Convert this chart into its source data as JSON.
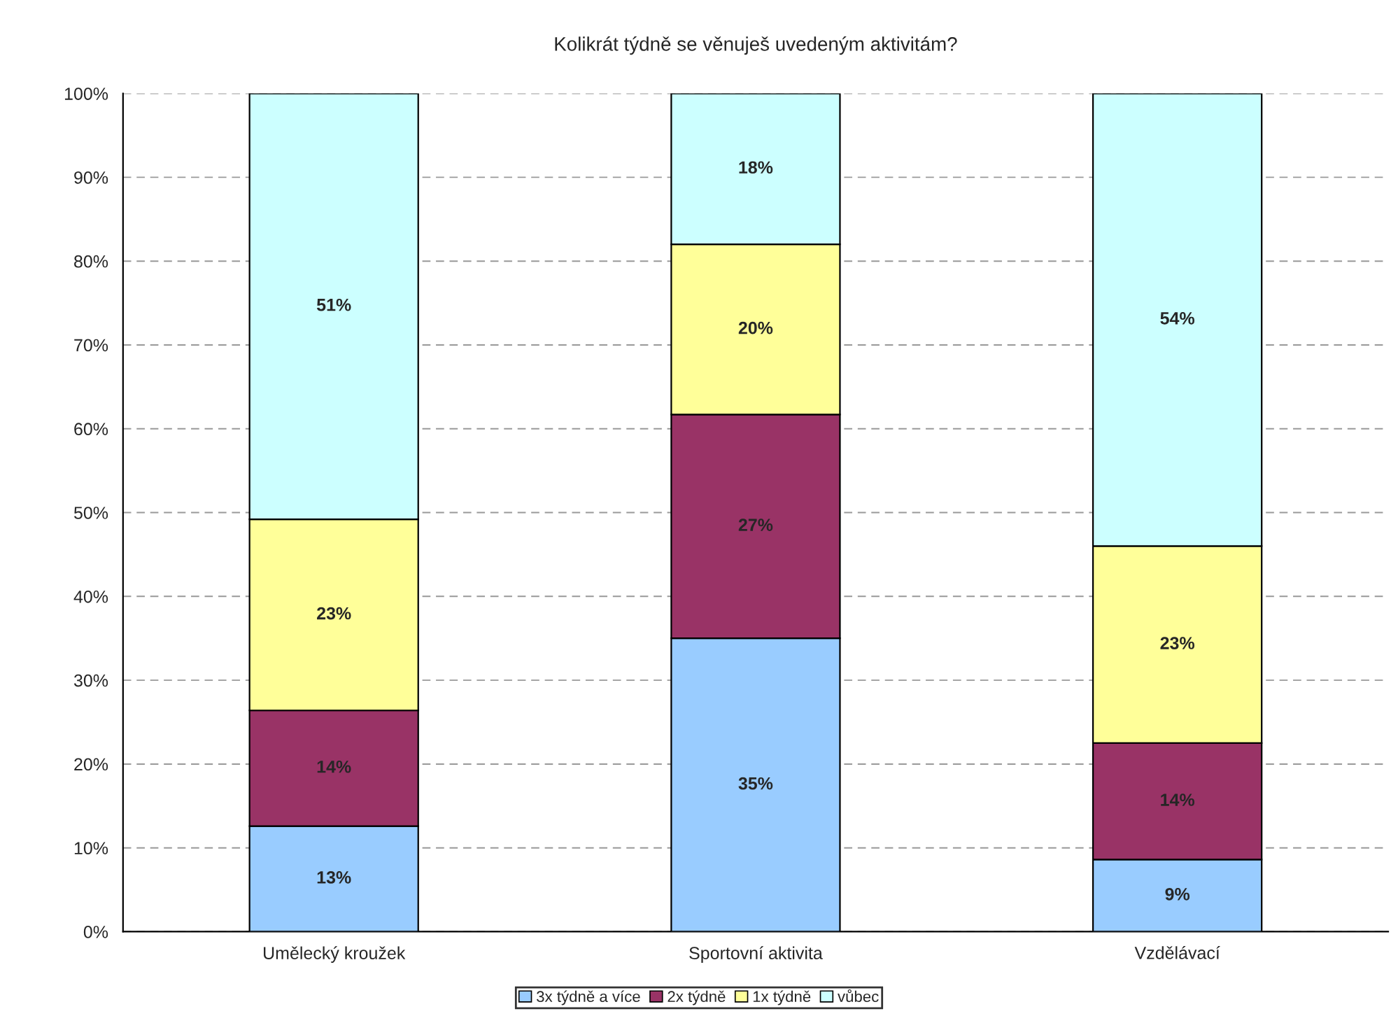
{
  "chart_data": {
    "type": "bar",
    "title": "Kolikrát týdně se věnuješ uvedeným aktivitám?",
    "categories": [
      "Umělecký kroužek",
      "Sportovní aktivita",
      "Vzdělávací"
    ],
    "stacked": true,
    "series": [
      {
        "name": "3x týdně a více",
        "color": "#99ccff",
        "values": [
          12.6,
          35.0,
          8.6
        ],
        "value_labels": [
          "13%",
          "35%",
          "9%"
        ]
      },
      {
        "name": "2x týdně",
        "color": "#993366",
        "values": [
          13.8,
          26.7,
          13.9
        ],
        "value_labels": [
          "14%",
          "27%",
          "14%"
        ]
      },
      {
        "name": "1x týdně",
        "color": "#ffff99",
        "values": [
          22.8,
          20.3,
          23.5
        ],
        "value_labels": [
          "23%",
          "20%",
          "23%"
        ]
      },
      {
        "name": "vůbec",
        "color": "#ccffff",
        "values": [
          50.8,
          18.0,
          54.0
        ],
        "value_labels": [
          "51%",
          "18%",
          "54%"
        ]
      }
    ],
    "ylim": [
      0,
      100
    ],
    "yticks": [
      {
        "value": 0,
        "label": "0%"
      },
      {
        "value": 10,
        "label": "10%"
      },
      {
        "value": 20,
        "label": "20%"
      },
      {
        "value": 30,
        "label": "30%"
      },
      {
        "value": 40,
        "label": "40%"
      },
      {
        "value": 50,
        "label": "50%"
      },
      {
        "value": 60,
        "label": "60%"
      },
      {
        "value": 70,
        "label": "70%"
      },
      {
        "value": 80,
        "label": "80%"
      },
      {
        "value": 90,
        "label": "90%"
      },
      {
        "value": 100,
        "label": "100%"
      }
    ],
    "grid": "y",
    "legend": "bottom"
  }
}
